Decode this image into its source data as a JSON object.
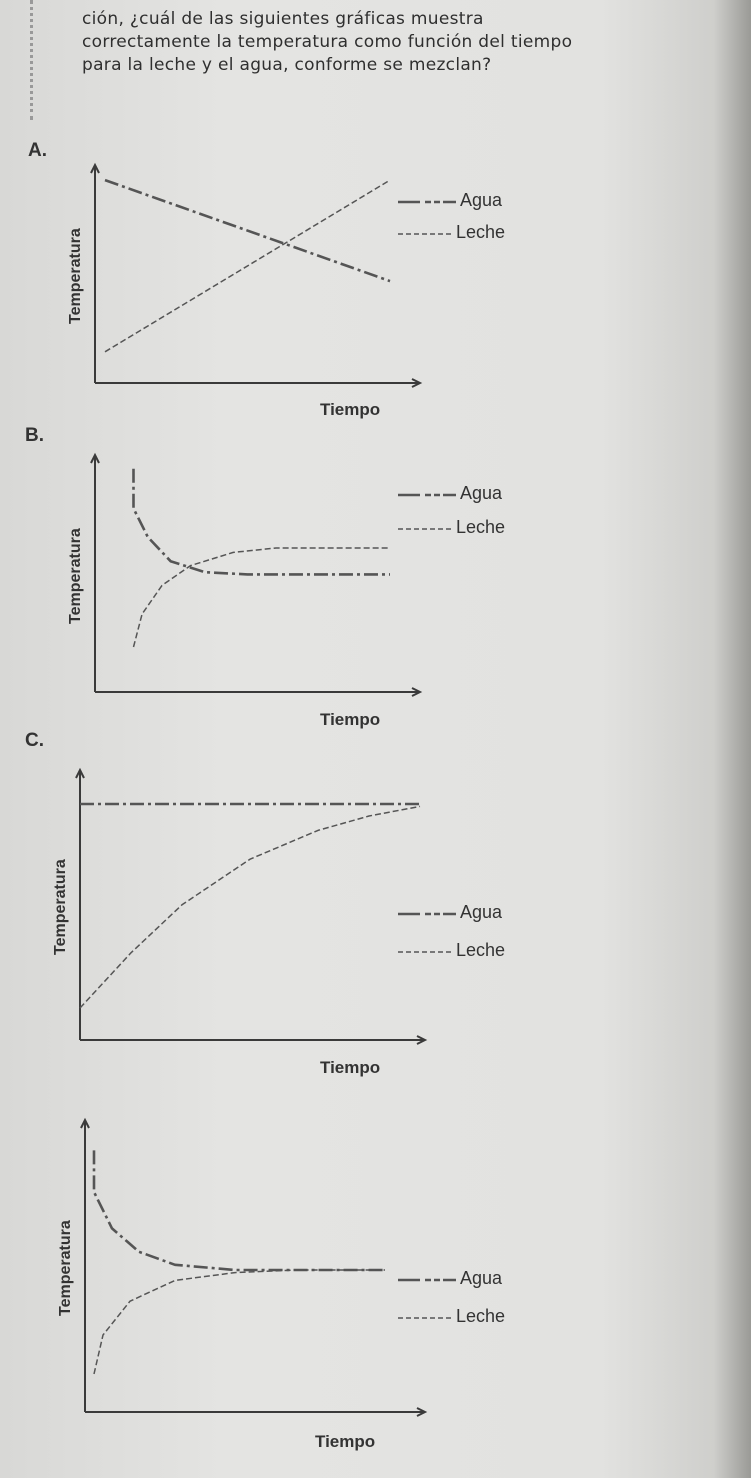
{
  "question": "ción, ¿cuál de las siguientes gráficas muestra correctamente la temperatura como función del tiempo para la leche y el agua, conforme se mezclan?",
  "colors": {
    "line": "#555555",
    "axis": "#3a3a3a"
  },
  "chart_data": [
    {
      "type": "line",
      "option": "A.",
      "ylabel": "Temperatura",
      "xlabel": "Tiempo",
      "xlim": [
        0,
        10
      ],
      "ylim": [
        0,
        10
      ],
      "legend": [
        "Agua",
        "Leche"
      ],
      "legend_position": "top-right",
      "series": [
        {
          "name": "Agua",
          "x": [
            0,
            10
          ],
          "y": [
            9.5,
            4.5
          ]
        },
        {
          "name": "Leche",
          "x": [
            0,
            10
          ],
          "y": [
            1,
            9.5
          ]
        }
      ]
    },
    {
      "type": "line",
      "option": "B.",
      "ylabel": "Temperatura",
      "xlabel": "Tiempo",
      "xlim": [
        0,
        10
      ],
      "ylim": [
        0,
        10
      ],
      "legend": [
        "Agua",
        "Leche"
      ],
      "legend_position": "top-right",
      "series": [
        {
          "name": "Agua",
          "x": [
            1,
            1,
            1.5,
            2.3,
            3.5,
            5,
            10
          ],
          "y": [
            9.6,
            7.8,
            6.5,
            5.4,
            4.9,
            4.8,
            4.8
          ]
        },
        {
          "name": "Leche",
          "x": [
            1,
            1.3,
            2,
            3,
            4.5,
            6,
            10
          ],
          "y": [
            1.5,
            3,
            4.3,
            5.2,
            5.8,
            6,
            6
          ]
        }
      ]
    },
    {
      "type": "line",
      "option": "C.",
      "ylabel": "Temperatura",
      "xlabel": "Tiempo",
      "xlim": [
        0,
        10
      ],
      "ylim": [
        0,
        10
      ],
      "legend": [
        "Agua",
        "Leche"
      ],
      "legend_position": "right",
      "series": [
        {
          "name": "Agua",
          "x": [
            0,
            10
          ],
          "y": [
            9,
            9
          ]
        },
        {
          "name": "Leche",
          "x": [
            0,
            1.5,
            3,
            5,
            7,
            8.5,
            10
          ],
          "y": [
            0.5,
            2.8,
            4.8,
            6.7,
            7.9,
            8.5,
            8.9
          ]
        }
      ]
    },
    {
      "type": "line",
      "option": "",
      "ylabel": "Temperatura",
      "xlabel": "Tiempo",
      "xlim": [
        0,
        10
      ],
      "ylim": [
        0,
        10
      ],
      "legend": [
        "Agua",
        "Leche"
      ],
      "legend_position": "right",
      "series": [
        {
          "name": "Agua",
          "x": [
            0.3,
            0.3,
            0.9,
            1.8,
            3,
            5,
            10
          ],
          "y": [
            9.6,
            8,
            6.6,
            5.7,
            5.2,
            5,
            5
          ]
        },
        {
          "name": "Leche",
          "x": [
            0.3,
            0.6,
            1.5,
            3,
            5,
            7,
            10
          ],
          "y": [
            1,
            2.5,
            3.8,
            4.6,
            4.9,
            5,
            5
          ]
        }
      ]
    }
  ]
}
